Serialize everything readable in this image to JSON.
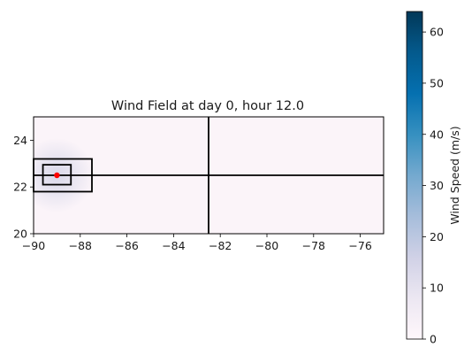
{
  "chart_data": {
    "type": "heatmap",
    "title": "Wind Field at day   0, hour 12.0",
    "xlabel": "",
    "ylabel": "",
    "xlim": [
      -90,
      -75
    ],
    "ylim": [
      20,
      25
    ],
    "x_ticks": [
      -90,
      -88,
      -86,
      -84,
      -82,
      -80,
      -78,
      -76
    ],
    "y_ticks": [
      20,
      22,
      24
    ],
    "x_tick_labels": [
      "−90",
      "−88",
      "−86",
      "−84",
      "−82",
      "−80",
      "−78",
      "−76"
    ],
    "y_tick_labels": [
      "20",
      "22",
      "24"
    ],
    "storm_center": {
      "lon": -89.0,
      "lat": 22.5,
      "color": "#ff0000"
    },
    "boxes": [
      {
        "name": "outer-box",
        "lon": [
          -90,
          -87.5
        ],
        "lat": [
          21.8,
          23.2
        ]
      },
      {
        "name": "inner-box",
        "lon": [
          -89.6,
          -88.4
        ],
        "lat": [
          22.1,
          22.95
        ]
      }
    ],
    "grid_lines": {
      "vertical_lon": [
        -82.5
      ],
      "horizontal_lat": [
        22.5
      ]
    },
    "wind_peak_ms": 12,
    "colorbar": {
      "label": "Wind Speed (m/s)",
      "range": [
        0,
        64
      ],
      "ticks": [
        0,
        10,
        20,
        30,
        40,
        50,
        60
      ],
      "tick_labels": [
        "0",
        "10",
        "20",
        "30",
        "40",
        "50",
        "60"
      ],
      "colormap": "PuBu"
    },
    "grid": false,
    "legend": "none"
  }
}
